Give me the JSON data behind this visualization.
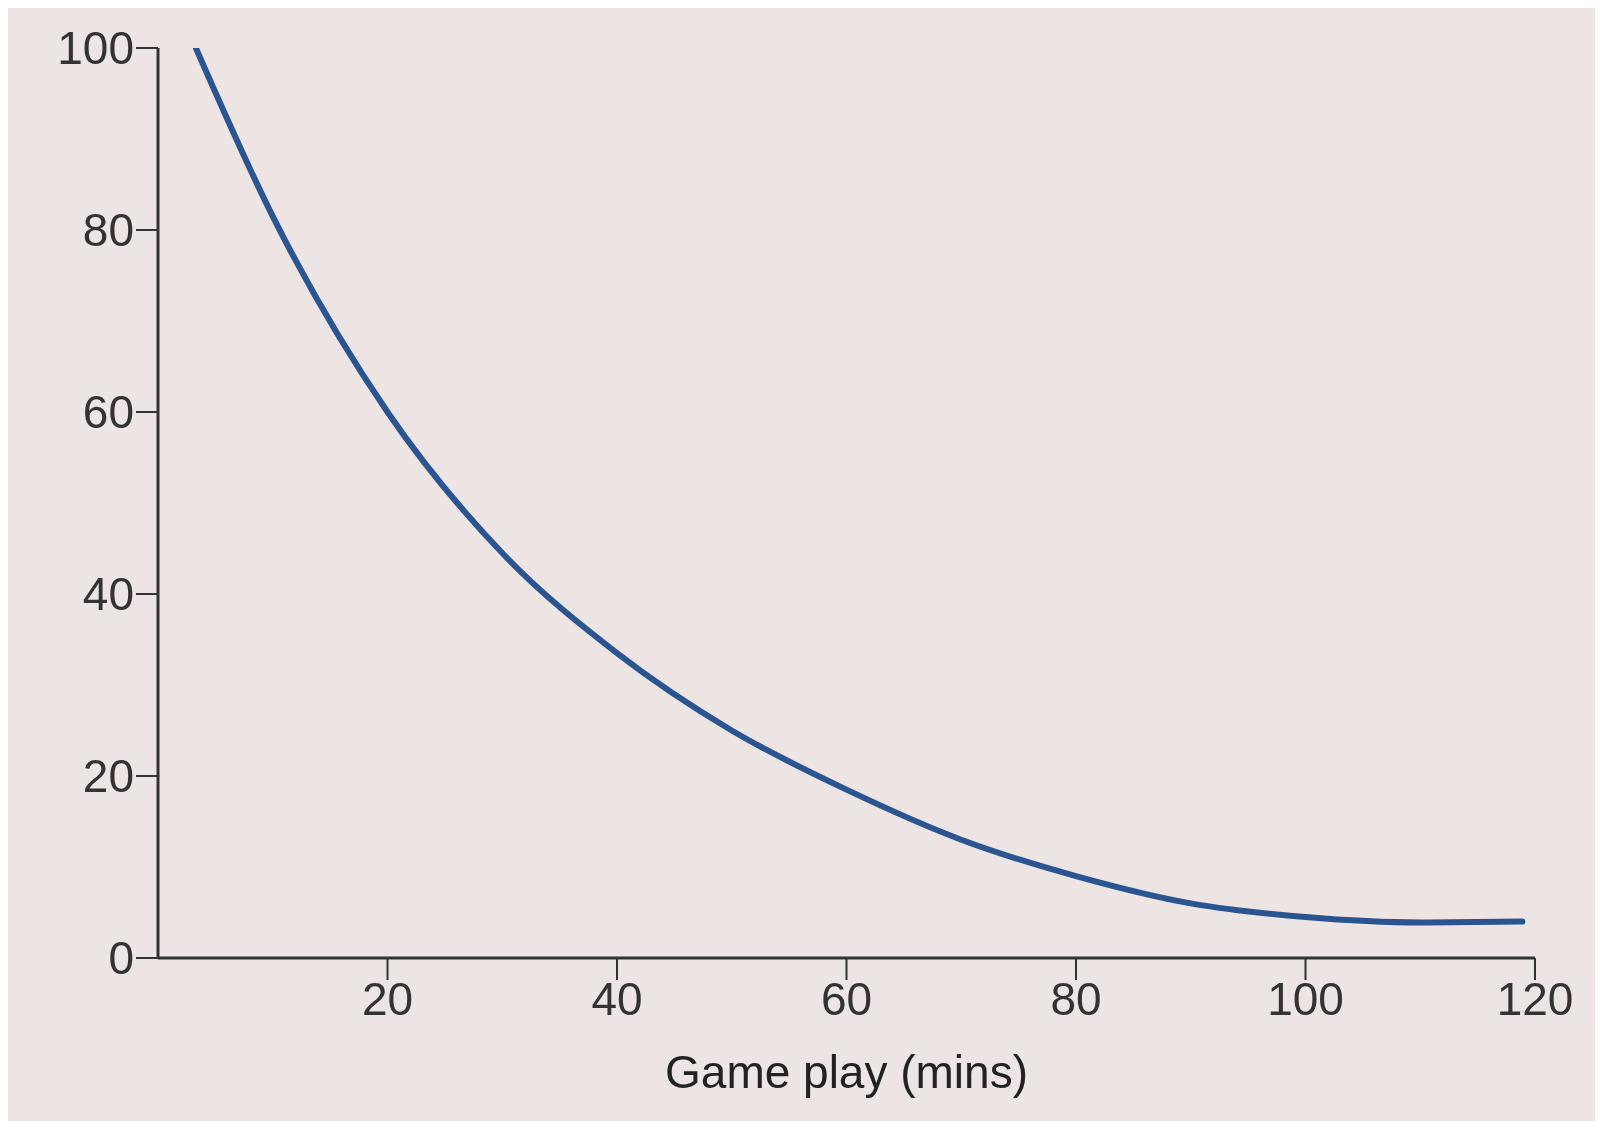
{
  "chart_data": {
    "type": "line",
    "xlabel": "Game play (mins)",
    "x": [
      3.3,
      10,
      20,
      30,
      40,
      50,
      60,
      70,
      80,
      90,
      100,
      110,
      118.9
    ],
    "series": [
      {
        "color": "#2b5590",
        "values": [
          100,
          81.5,
          60,
          44.5,
          33.5,
          25,
          18.5,
          13,
          9,
          6,
          4.5,
          3.9,
          4
        ]
      }
    ],
    "xlim": [
      0,
      120
    ],
    "xticks": [
      20,
      40,
      60,
      80,
      100,
      120
    ],
    "ylim": [
      0,
      100
    ],
    "yticks": [
      0,
      20,
      40,
      60,
      80,
      100
    ],
    "grid": false,
    "legend": false,
    "marker": "none",
    "line_style": "solid"
  }
}
